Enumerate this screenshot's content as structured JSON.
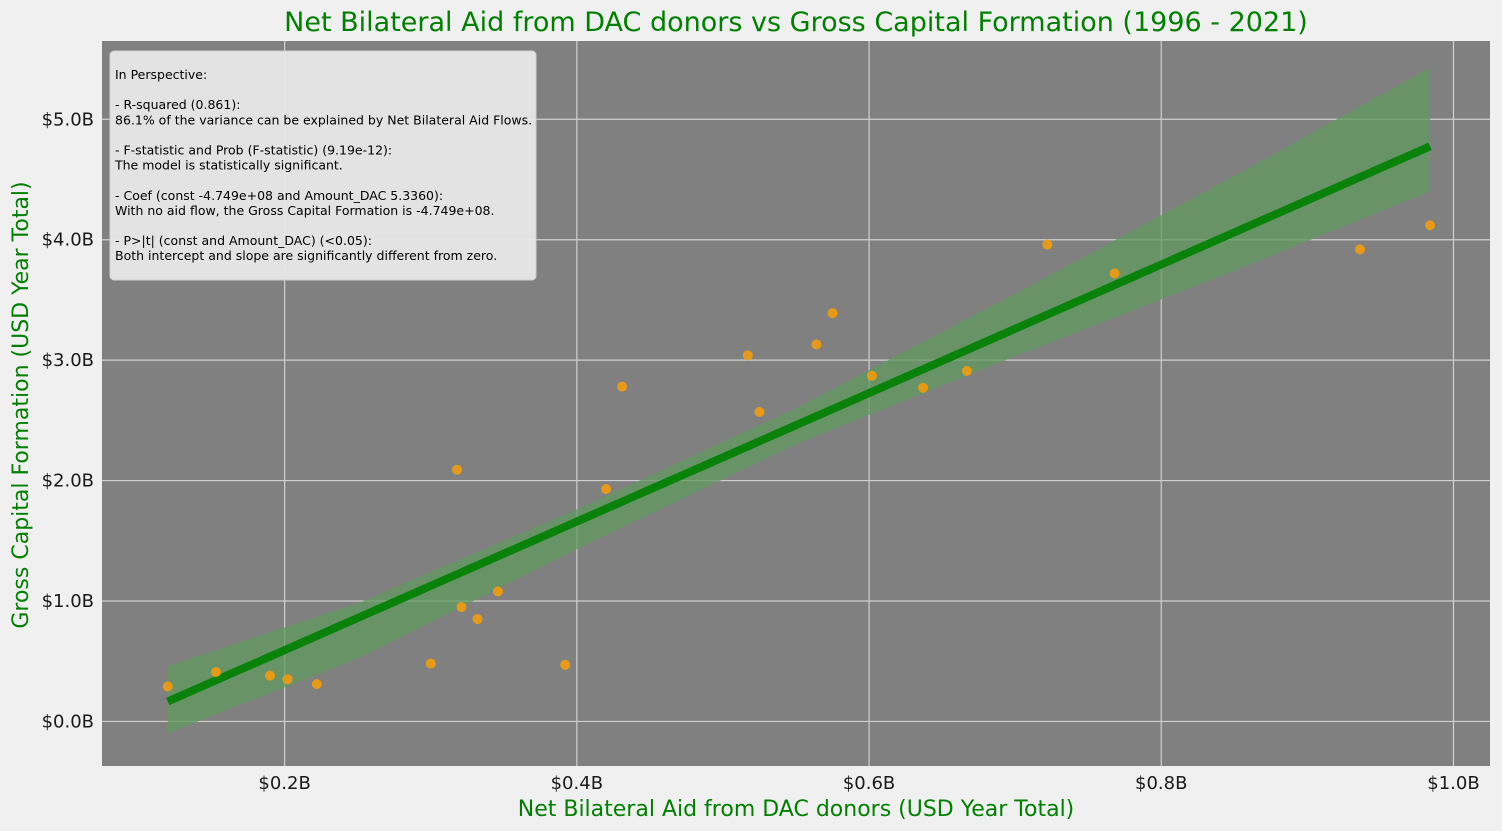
{
  "chart_data": {
    "type": "scatter",
    "title": "Net Bilateral Aid from DAC donors vs Gross Capital Formation (1996 - 2021)",
    "xlabel": "Net Bilateral Aid from DAC donors (USD Year Total)",
    "ylabel": "Gross Capital Formation (USD Year Total)",
    "xlim": [
      0.075,
      1.025
    ],
    "ylim": [
      -0.37,
      5.65
    ],
    "xticks": [
      0.2,
      0.4,
      0.6,
      0.8,
      1.0
    ],
    "xtick_labels": [
      "$0.2B",
      "$0.4B",
      "$0.6B",
      "$0.8B",
      "$1.0B"
    ],
    "yticks": [
      0.0,
      1.0,
      2.0,
      3.0,
      4.0,
      5.0
    ],
    "ytick_labels": [
      "$0.0B",
      "$1.0B",
      "$2.0B",
      "$3.0B",
      "$4.0B",
      "$5.0B"
    ],
    "grid": true,
    "colors": {
      "background": "#808080",
      "figure": "#f0f0f0",
      "points": "#f29b0c",
      "regression_line": "#088208",
      "confidence_band": "#5f9a5f",
      "grid": "#d0d0d0",
      "text_accent": "#008000"
    },
    "points": [
      {
        "x": 0.12,
        "y": 0.29
      },
      {
        "x": 0.153,
        "y": 0.41
      },
      {
        "x": 0.19,
        "y": 0.38
      },
      {
        "x": 0.202,
        "y": 0.35
      },
      {
        "x": 0.222,
        "y": 0.31
      },
      {
        "x": 0.3,
        "y": 0.48
      },
      {
        "x": 0.318,
        "y": 2.09
      },
      {
        "x": 0.321,
        "y": 0.95
      },
      {
        "x": 0.332,
        "y": 0.85
      },
      {
        "x": 0.346,
        "y": 1.08
      },
      {
        "x": 0.392,
        "y": 0.47
      },
      {
        "x": 0.42,
        "y": 1.93
      },
      {
        "x": 0.431,
        "y": 2.78
      },
      {
        "x": 0.517,
        "y": 3.04
      },
      {
        "x": 0.525,
        "y": 2.57
      },
      {
        "x": 0.564,
        "y": 3.13
      },
      {
        "x": 0.575,
        "y": 3.39
      },
      {
        "x": 0.602,
        "y": 2.87
      },
      {
        "x": 0.637,
        "y": 2.77
      },
      {
        "x": 0.667,
        "y": 2.91
      },
      {
        "x": 0.722,
        "y": 3.96
      },
      {
        "x": 0.768,
        "y": 3.72
      },
      {
        "x": 0.936,
        "y": 3.92
      },
      {
        "x": 0.984,
        "y": 4.12
      }
    ],
    "regression": {
      "intercept": -0.4749,
      "slope": 5.336,
      "x_range": [
        0.12,
        0.984
      ],
      "band": [
        {
          "x": 0.12,
          "lower": -0.1,
          "upper": 0.46
        },
        {
          "x": 0.25,
          "lower": 0.52,
          "upper": 0.98
        },
        {
          "x": 0.4,
          "lower": 1.43,
          "upper": 1.76
        },
        {
          "x": 0.55,
          "lower": 2.3,
          "upper": 2.6
        },
        {
          "x": 0.7,
          "lower": 3.03,
          "upper": 3.55
        },
        {
          "x": 0.85,
          "lower": 3.74,
          "upper": 4.53
        },
        {
          "x": 0.984,
          "lower": 4.4,
          "upper": 5.43
        }
      ]
    },
    "annotation": {
      "lines": [
        "In Perspective:",
        "",
        "- R-squared (0.861):",
        "86.1% of the variance can be explained by Net Bilateral Aid Flows.",
        "",
        "- F-statistic and Prob (F-statistic) (9.19e-12):",
        "The model is statistically significant.",
        "",
        "- Coef (const -4.749e+08 and Amount_DAC 5.3360):",
        "With no aid flow, the Gross Capital Formation is -4.749e+08.",
        "",
        "- P>|t| (const and Amount_DAC) (<0.05):",
        "Both intercept and slope are significantly different from zero."
      ],
      "placement": "top-left"
    }
  }
}
